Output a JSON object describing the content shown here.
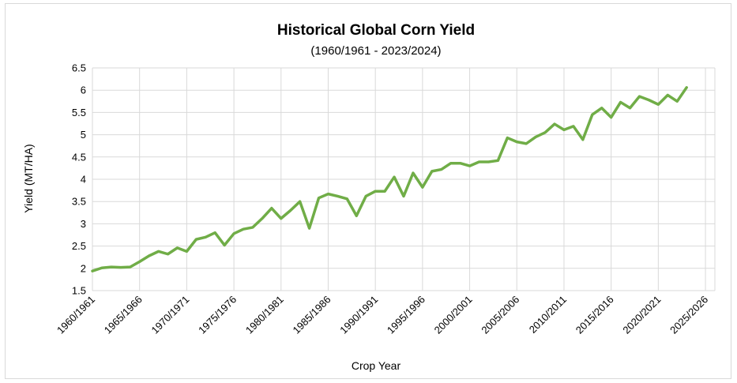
{
  "chart_data": {
    "type": "line",
    "title": "Historical Global Corn Yield",
    "subtitle": "(1960/1961 - 2023/2024)",
    "xlabel": "Crop Year",
    "ylabel": "Yield  (MT/HA)",
    "ylim": [
      1.5,
      6.5
    ],
    "yticks": [
      "1.5",
      "2",
      "2.5",
      "3",
      "3.5",
      "4",
      "4.5",
      "5",
      "5.5",
      "6",
      "6.5"
    ],
    "xticks": [
      "1960/1961",
      "1965/1966",
      "1970/1971",
      "1975/1976",
      "1980/1981",
      "1985/1986",
      "1990/1991",
      "1995/1996",
      "2000/2001",
      "2005/2006",
      "2010/2011",
      "2015/2016",
      "2020/2021",
      "2025/2026"
    ],
    "grid": true,
    "color": "#70ad47",
    "x": [
      "1960/1961",
      "1961/1962",
      "1962/1963",
      "1963/1964",
      "1964/1965",
      "1965/1966",
      "1966/1967",
      "1967/1968",
      "1968/1969",
      "1969/1970",
      "1970/1971",
      "1971/1972",
      "1972/1973",
      "1973/1974",
      "1974/1975",
      "1975/1976",
      "1976/1977",
      "1977/1978",
      "1978/1979",
      "1979/1980",
      "1980/1981",
      "1981/1982",
      "1982/1983",
      "1983/1984",
      "1984/1985",
      "1985/1986",
      "1986/1987",
      "1987/1988",
      "1988/1989",
      "1989/1990",
      "1990/1991",
      "1991/1992",
      "1992/1993",
      "1993/1994",
      "1994/1995",
      "1995/1996",
      "1996/1997",
      "1997/1998",
      "1998/1999",
      "1999/2000",
      "2000/2001",
      "2001/2002",
      "2002/2003",
      "2003/2004",
      "2004/2005",
      "2005/2006",
      "2006/2007",
      "2007/2008",
      "2008/2009",
      "2009/2010",
      "2010/2011",
      "2011/2012",
      "2012/2013",
      "2013/2014",
      "2014/2015",
      "2015/2016",
      "2016/2017",
      "2017/2018",
      "2018/2019",
      "2019/2020",
      "2020/2021",
      "2021/2022",
      "2022/2023",
      "2023/2024"
    ],
    "values": [
      1.94,
      2.01,
      2.03,
      2.02,
      2.03,
      2.15,
      2.28,
      2.38,
      2.32,
      2.46,
      2.38,
      2.65,
      2.7,
      2.8,
      2.52,
      2.78,
      2.88,
      2.92,
      3.12,
      3.35,
      3.12,
      3.3,
      3.5,
      2.9,
      3.58,
      3.67,
      3.62,
      3.56,
      3.18,
      3.62,
      3.73,
      3.73,
      4.05,
      3.62,
      4.14,
      3.82,
      4.18,
      4.22,
      4.36,
      4.36,
      4.3,
      4.39,
      4.39,
      4.42,
      4.93,
      4.84,
      4.8,
      4.95,
      5.05,
      5.24,
      5.11,
      5.19,
      4.89,
      5.45,
      5.6,
      5.39,
      5.73,
      5.6,
      5.86,
      5.78,
      5.68,
      5.89,
      5.75,
      6.06
    ]
  }
}
